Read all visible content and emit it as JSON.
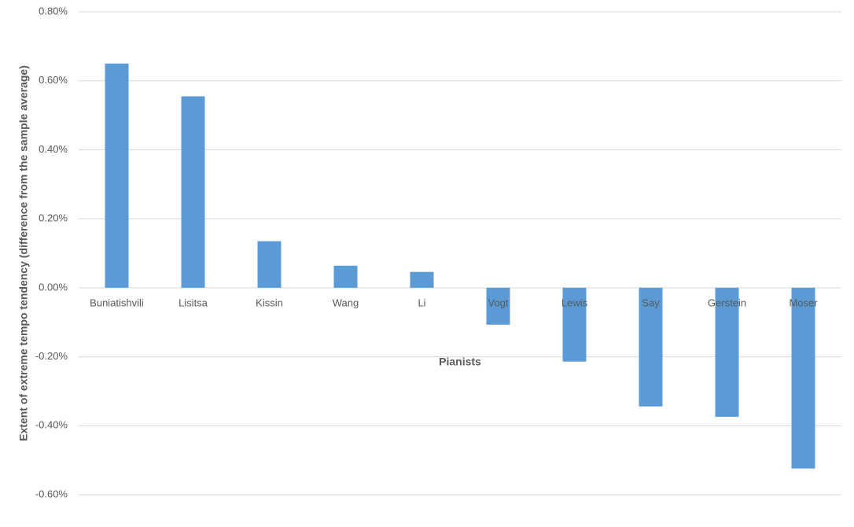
{
  "chart_data": {
    "type": "bar",
    "categories": [
      "Buniatishvili",
      "Lisitsa",
      "Kissin",
      "Wang",
      "Li",
      "Vogt",
      "Lewis",
      "Say",
      "Gerstein",
      "Moser"
    ],
    "values": [
      0.65,
      0.555,
      0.135,
      0.064,
      0.046,
      -0.107,
      -0.214,
      -0.344,
      -0.374,
      -0.524
    ],
    "color": "#5b9bd5",
    "x_label": "Pianists",
    "y_label": "Extent of extreme tempo tendency (difference from the sample average)",
    "ylim": [
      -0.6,
      0.8
    ],
    "yticks": [
      {
        "value": 0.8,
        "label": "0.80%"
      },
      {
        "value": 0.6,
        "label": "0.60%"
      },
      {
        "value": 0.4,
        "label": "0.40%"
      },
      {
        "value": 0.2,
        "label": "0.20%"
      },
      {
        "value": 0,
        "label": "0.00%"
      },
      {
        "value": -0.2,
        "label": "-0.20%"
      },
      {
        "value": -0.4,
        "label": "-0.40%"
      },
      {
        "value": -0.6,
        "label": "-0.60%"
      }
    ],
    "grid": true
  }
}
